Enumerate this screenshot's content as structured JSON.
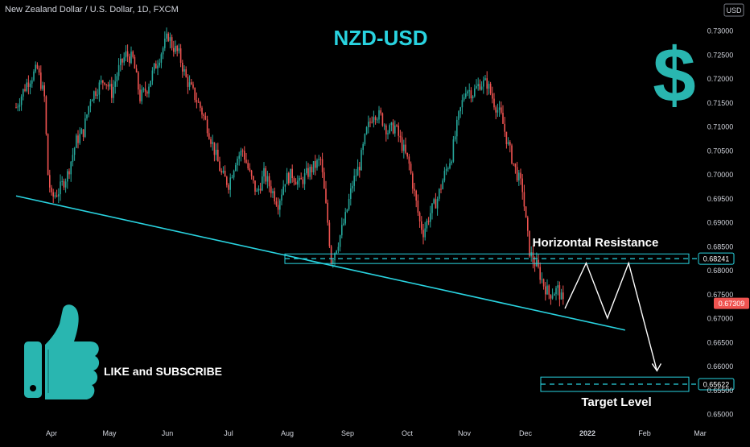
{
  "header": {
    "symbol_title": "New Zealand Dollar / U.S. Dollar, 1D, FXCM",
    "currency_button": "USD"
  },
  "colors": {
    "background": "#000000",
    "up_candle": "#26a69a",
    "down_candle": "#ef5350",
    "accent": "#29d3e0",
    "axis_text": "#d1d4dc",
    "price_badge": "#ef5350",
    "drawing": "#ffffff"
  },
  "annotations": {
    "chart_title": "NZD-USD",
    "dollar_symbol": "$",
    "horizontal_resistance": "Horizontal Resistance",
    "target_level": "Target Level",
    "like_subscribe": "LIKE and SUBSCRIBE"
  },
  "chart_data": {
    "type": "candlestick",
    "title": "New Zealand Dollar / U.S. Dollar, 1D, FXCM",
    "xlabel": "",
    "ylabel": "",
    "ylim": [
      0.6475,
      0.7328
    ],
    "y_ticks": [
      "0.73000",
      "0.72500",
      "0.72000",
      "0.71500",
      "0.71000",
      "0.70500",
      "0.70000",
      "0.69500",
      "0.69000",
      "0.68500",
      "0.68000",
      "0.67500",
      "0.67000",
      "0.66500",
      "0.66000",
      "0.65500",
      "0.65000"
    ],
    "x_ticks": [
      "Apr",
      "May",
      "Jun",
      "Jul",
      "Aug",
      "Sep",
      "Oct",
      "Nov",
      "Dec",
      "2022",
      "Feb",
      "Mar"
    ],
    "price_labels": {
      "resistance": "0.68241",
      "current": "0.67309",
      "target": "0.65622"
    },
    "grid": false,
    "close_path": [
      [
        0,
        0.714
      ],
      [
        6,
        0.719
      ],
      [
        12,
        0.722
      ],
      [
        16,
        0.716
      ],
      [
        18,
        0.7
      ],
      [
        20,
        0.695
      ],
      [
        24,
        0.6965
      ],
      [
        29,
        0.7
      ],
      [
        34,
        0.707
      ],
      [
        38,
        0.709
      ],
      [
        42,
        0.716
      ],
      [
        46,
        0.718
      ],
      [
        50,
        0.72
      ],
      [
        54,
        0.717
      ],
      [
        58,
        0.722
      ],
      [
        62,
        0.725
      ],
      [
        66,
        0.724
      ],
      [
        70,
        0.716
      ],
      [
        74,
        0.718
      ],
      [
        78,
        0.722
      ],
      [
        82,
        0.7255
      ],
      [
        86,
        0.729
      ],
      [
        88,
        0.727
      ],
      [
        92,
        0.725
      ],
      [
        96,
        0.72
      ],
      [
        100,
        0.717
      ],
      [
        104,
        0.714
      ],
      [
        108,
        0.71
      ],
      [
        112,
        0.705
      ],
      [
        116,
        0.7
      ],
      [
        120,
        0.698
      ],
      [
        124,
        0.703
      ],
      [
        128,
        0.705
      ],
      [
        132,
        0.7
      ],
      [
        136,
        0.696
      ],
      [
        140,
        0.7
      ],
      [
        144,
        0.697
      ],
      [
        148,
        0.694
      ],
      [
        152,
        0.699
      ],
      [
        156,
        0.7
      ],
      [
        160,
        0.698
      ],
      [
        164,
        0.7
      ],
      [
        168,
        0.7015
      ],
      [
        172,
        0.703
      ],
      [
        176,
        0.69
      ],
      [
        178,
        0.682
      ],
      [
        182,
        0.686
      ],
      [
        186,
        0.691
      ],
      [
        190,
        0.698
      ],
      [
        194,
        0.702
      ],
      [
        198,
        0.709
      ],
      [
        202,
        0.713
      ],
      [
        206,
        0.712
      ],
      [
        210,
        0.709
      ],
      [
        214,
        0.71
      ],
      [
        218,
        0.706
      ],
      [
        222,
        0.702
      ],
      [
        226,
        0.694
      ],
      [
        228,
        0.69
      ],
      [
        230,
        0.688
      ],
      [
        234,
        0.692
      ],
      [
        238,
        0.695
      ],
      [
        242,
        0.7
      ],
      [
        246,
        0.704
      ],
      [
        250,
        0.712
      ],
      [
        254,
        0.718
      ],
      [
        258,
        0.717
      ],
      [
        262,
        0.719
      ],
      [
        266,
        0.719
      ],
      [
        270,
        0.715
      ],
      [
        274,
        0.712
      ],
      [
        278,
        0.706
      ],
      [
        282,
        0.701
      ],
      [
        286,
        0.697
      ],
      [
        288,
        0.69
      ],
      [
        290,
        0.684
      ],
      [
        292,
        0.682
      ],
      [
        294,
        0.681
      ],
      [
        298,
        0.677
      ],
      [
        301,
        0.675
      ],
      [
        306,
        0.676
      ],
      [
        309,
        0.673
      ]
    ],
    "drawings": {
      "trendline": [
        [
          0,
          0.6955
        ],
        [
          344,
          0.6675
        ]
      ],
      "resistance_zone": [
        0.6814,
        0.6834
      ],
      "resistance_level": 0.68241,
      "target_zone": [
        0.6547,
        0.6577
      ],
      "target_level": 0.65622,
      "projection_path": [
        [
          310,
          0.672
        ],
        [
          322,
          0.6815
        ],
        [
          334,
          0.67
        ],
        [
          346,
          0.6815
        ],
        [
          362,
          0.659
        ]
      ]
    }
  }
}
